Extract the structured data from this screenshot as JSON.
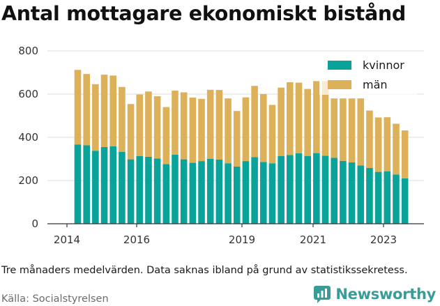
{
  "title": "Antal mottagare ekonomiskt bistånd",
  "caption": "Tre månaders medelvärden. Data saknas ibland på grund av statistikssekretess.",
  "source": "Källa: Socialstyrelsen",
  "brand": {
    "name": "Newsworthy",
    "icon": "newsworthy-logo-icon",
    "color": "#3a9c98"
  },
  "colors": {
    "kvinnor": "#0aa39a",
    "man": "#ddb05a",
    "grid": "#dcdcdc"
  },
  "chart_data": {
    "type": "bar",
    "stacked": true,
    "ylim": [
      0,
      800
    ],
    "yticks": [
      0,
      200,
      400,
      600,
      800
    ],
    "xticks": [
      "2014",
      "2016",
      "2019",
      "2021",
      "2023"
    ],
    "legend_position": "top-right",
    "grid": "horizontal",
    "series": [
      {
        "name": "kvinnor",
        "values": [
          367,
          363,
          338,
          355,
          358,
          333,
          298,
          313,
          310,
          302,
          276,
          320,
          298,
          282,
          290,
          300,
          297,
          280,
          265,
          290,
          308,
          286,
          280,
          314,
          318,
          326,
          314,
          327,
          315,
          305,
          291,
          284,
          270,
          258,
          240,
          243,
          228,
          210
        ]
      },
      {
        "name": "män",
        "values": [
          345,
          330,
          308,
          335,
          328,
          300,
          256,
          285,
          302,
          288,
          264,
          296,
          310,
          302,
          288,
          320,
          322,
          300,
          257,
          295,
          330,
          314,
          270,
          316,
          337,
          327,
          310,
          333,
          345,
          275,
          289,
          296,
          310,
          266,
          252,
          250,
          235,
          222
        ]
      }
    ]
  }
}
